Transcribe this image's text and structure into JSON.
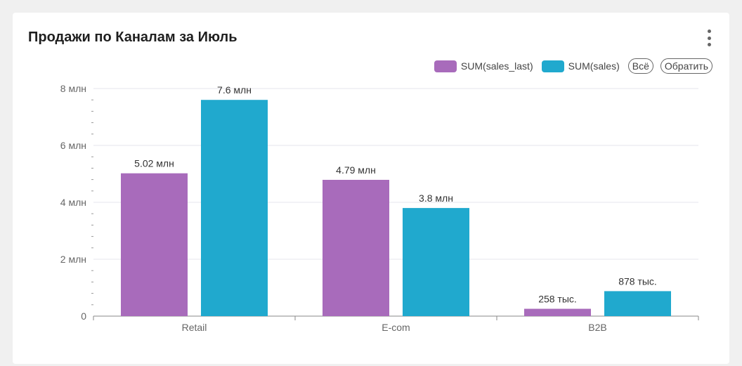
{
  "title": "Продажи по Каналам за Июль",
  "legend": {
    "items": [
      {
        "label": "SUM(sales_last)",
        "color": "#a86bbb"
      },
      {
        "label": "SUM(sales)",
        "color": "#20a9ce"
      }
    ],
    "all_label": "Всё",
    "invert_label": "Обратить"
  },
  "chart_data": {
    "type": "bar",
    "categories": [
      "Retail",
      "E-com",
      "B2B"
    ],
    "series": [
      {
        "name": "SUM(sales_last)",
        "values": [
          5020000,
          4790000,
          258000
        ],
        "labels": [
          "5.02 млн",
          "4.79 млн",
          "258 тыс."
        ],
        "color": "#a86bbb"
      },
      {
        "name": "SUM(sales)",
        "values": [
          7600000,
          3800000,
          878000
        ],
        "labels": [
          "7.6 млн",
          "3.8 млн",
          "878 тыс."
        ],
        "color": "#20a9ce"
      }
    ],
    "yticks": [
      {
        "value": 0,
        "label": "0"
      },
      {
        "value": 2000000,
        "label": "2 млн"
      },
      {
        "value": 4000000,
        "label": "4 млн"
      },
      {
        "value": 6000000,
        "label": "6 млн"
      },
      {
        "value": 8000000,
        "label": "8 млн"
      }
    ],
    "ylim": [
      0,
      8000000
    ],
    "grid": true,
    "legend_position": "top-right"
  }
}
